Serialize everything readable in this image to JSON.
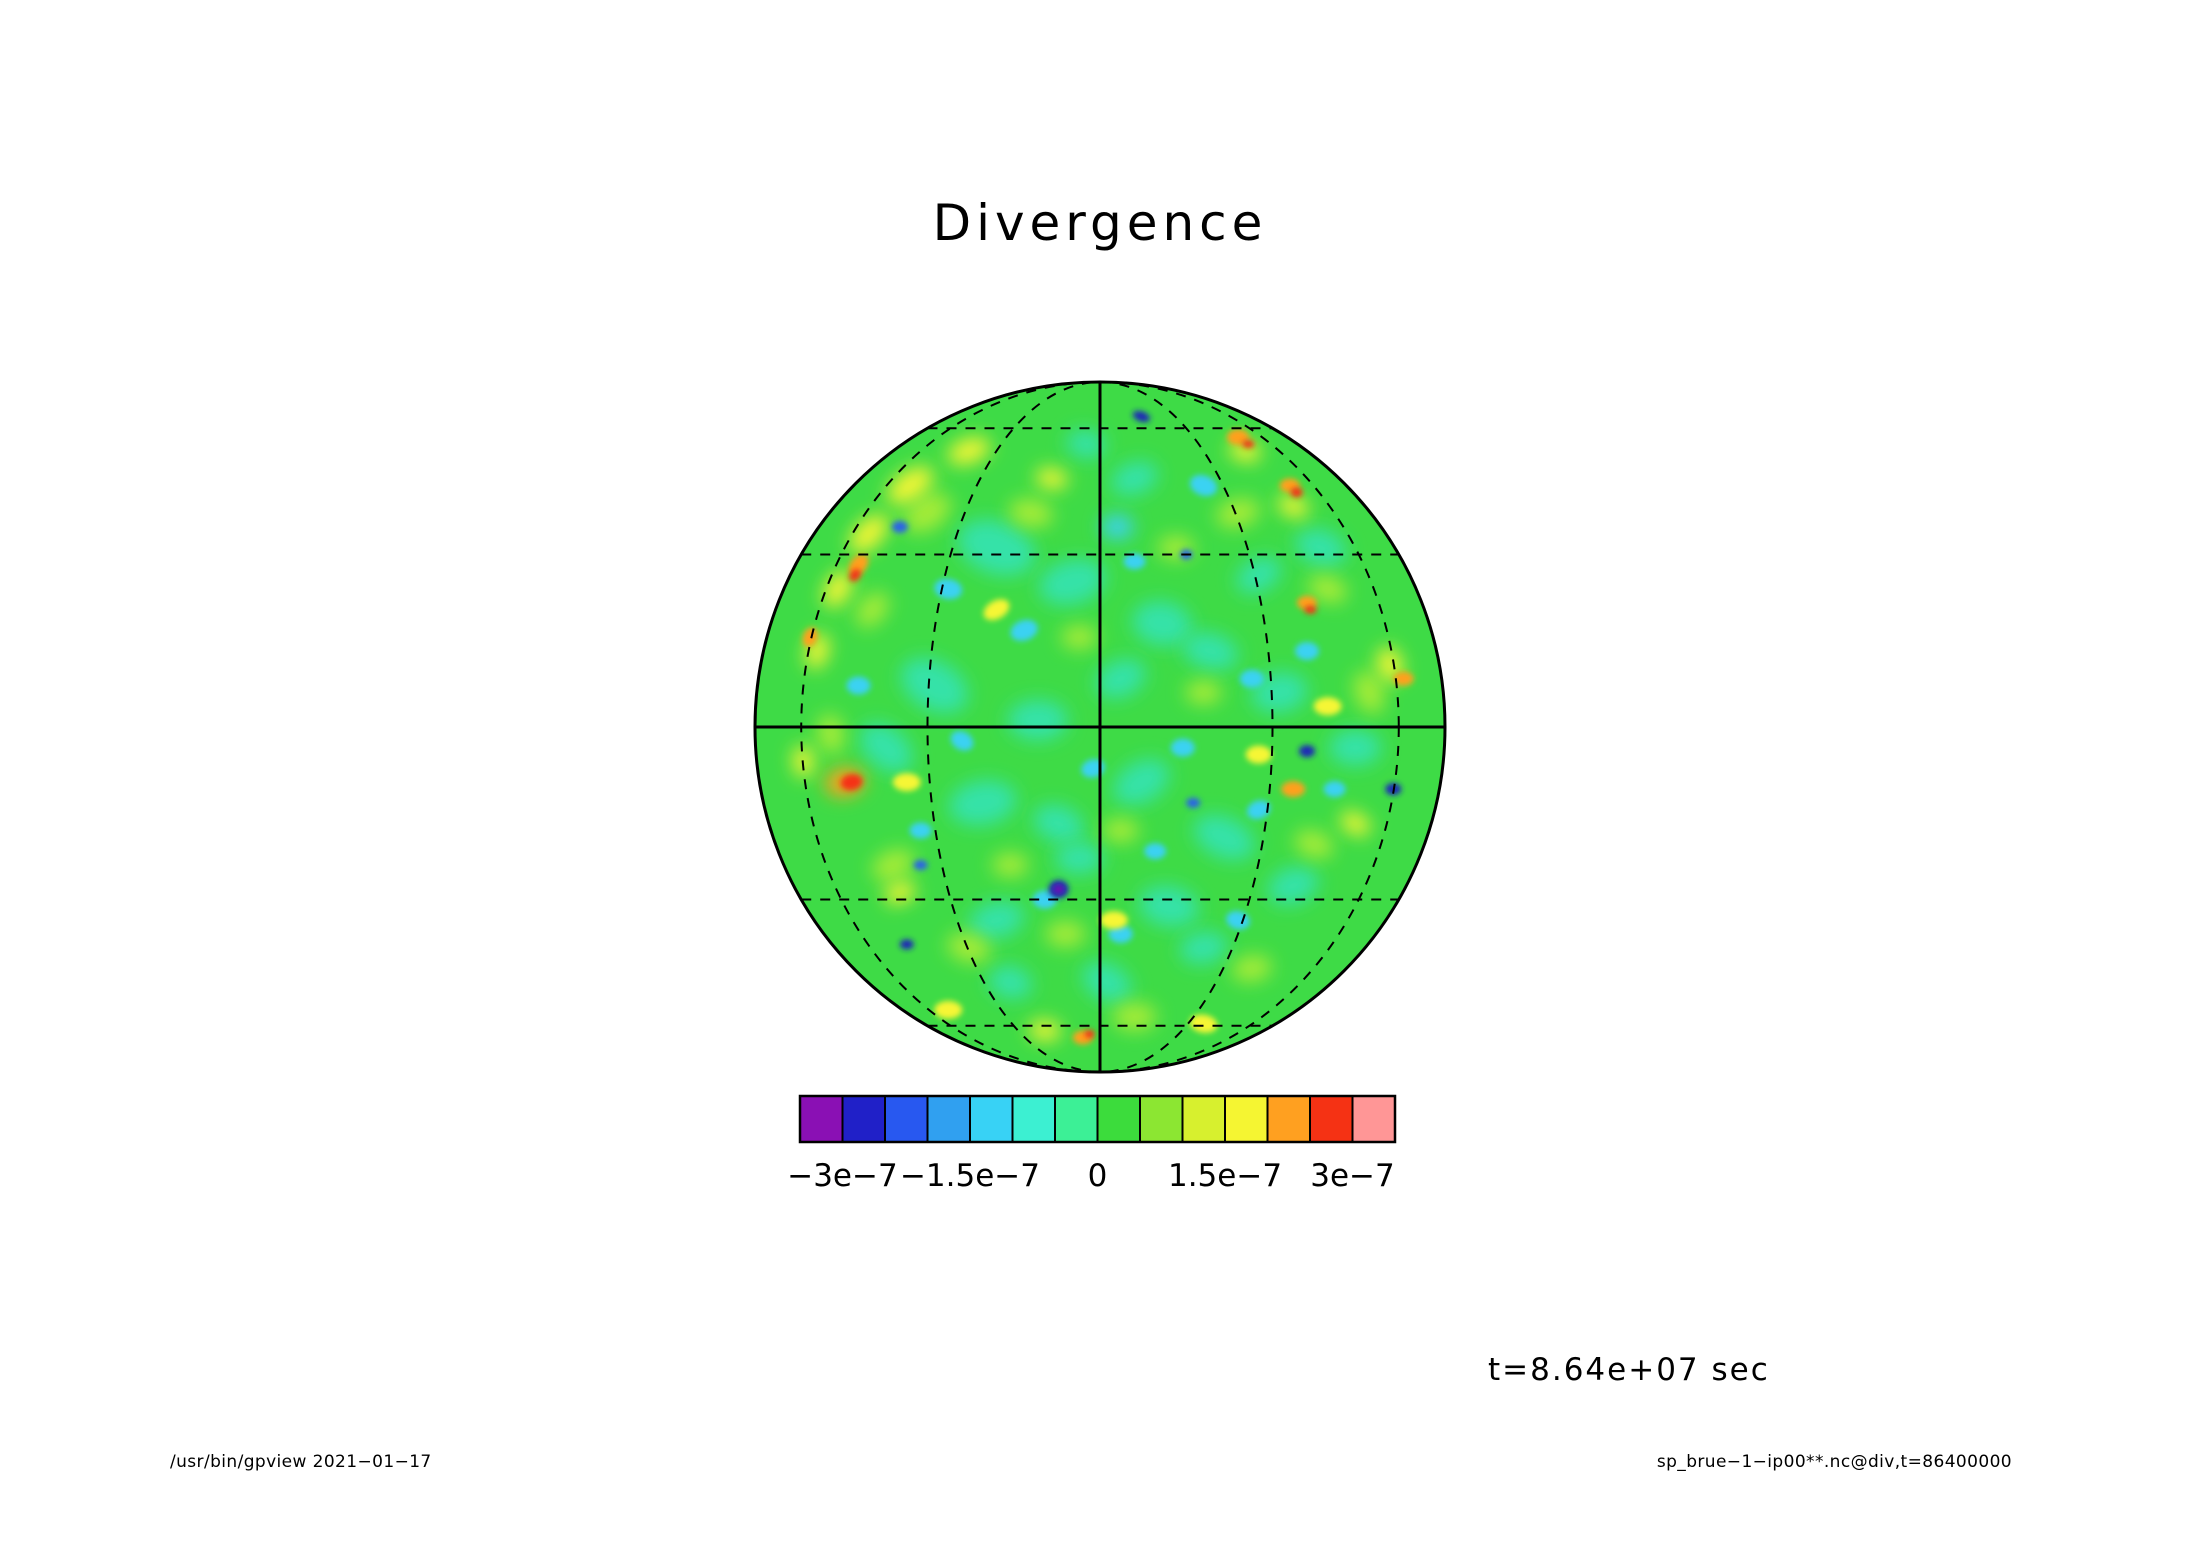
{
  "title": "Divergence",
  "time_annotation": "t=8.64e+07 sec",
  "footer": {
    "left": "/usr/bin/gpview  2021−01−17",
    "right": "sp_brue−1−ip00**.nc@div,t=86400000"
  },
  "chart_data": {
    "type": "heatmap",
    "projection": "orthographic globe (equatorial aspect)",
    "title": "Divergence",
    "time_label": "t=8.64e+07 sec",
    "colorbar": {
      "orientation": "horizontal",
      "value_min": -3.5e-07,
      "value_max": 3.5e-07,
      "cell_step": 5e-08,
      "cell_colors": [
        "#8a10b4",
        "#2020c8",
        "#2858f0",
        "#30a0f0",
        "#38d2f5",
        "#3cf0d2",
        "#3cf096",
        "#3cdc3c",
        "#8ce632",
        "#d7f02e",
        "#f5f532",
        "#ffa020",
        "#f53214",
        "#ff9696"
      ],
      "ticks": [
        {
          "label": "−3e−7",
          "value": -3e-07,
          "pct": 7.14
        },
        {
          "label": "−1.5e−7",
          "value": -1.5e-07,
          "pct": 28.57
        },
        {
          "label": "0",
          "value": 0,
          "pct": 50
        },
        {
          "label": "1.5e−7",
          "value": 1.5e-07,
          "pct": 71.43
        },
        {
          "label": "3e−7",
          "value": 3e-07,
          "pct": 92.86
        }
      ]
    },
    "graticule": {
      "equator": "solid",
      "central_meridian": "solid",
      "dashed_parallels_deg": [
        30,
        60
      ],
      "dashed_meridians_deg": [
        30,
        60
      ]
    },
    "field": {
      "description": "Turbulent divergence anomalies of order ±3e-7 on a mostly green near-zero background; warm yellow/orange/red maxima and cyan/teal/blue minima scattered over the sphere, with a yellow-orange arc on the upper-left limb, a strong red spot on the mid-left, and several deep-blue dots (strongest near bottom-center).",
      "base_color": "#3edb46",
      "palette": {
        "teal": "#35e2a8",
        "cyan": "#3ad2f2",
        "lgreen": "#a6ec38",
        "yellow": "#f6f636",
        "orange": "#ffa01e",
        "red": "#f53214",
        "blue": "#2a62e8",
        "navy": "#1c26b8",
        "purple": "#7a14b0"
      },
      "features": [
        [
          -0.3,
          -0.52,
          40,
          26,
          20,
          "teal"
        ],
        [
          -0.08,
          -0.42,
          34,
          22,
          -15,
          "teal"
        ],
        [
          0.18,
          -0.3,
          30,
          22,
          10,
          "teal"
        ],
        [
          -0.48,
          -0.12,
          36,
          24,
          30,
          "teal"
        ],
        [
          -0.18,
          -0.02,
          30,
          20,
          0,
          "teal"
        ],
        [
          0.06,
          -0.14,
          26,
          18,
          -25,
          "teal"
        ],
        [
          0.32,
          -0.22,
          28,
          18,
          15,
          "teal"
        ],
        [
          -0.62,
          0.06,
          30,
          20,
          40,
          "teal"
        ],
        [
          -0.34,
          0.22,
          34,
          22,
          -10,
          "teal"
        ],
        [
          -0.12,
          0.28,
          26,
          18,
          20,
          "teal"
        ],
        [
          0.12,
          0.16,
          30,
          20,
          -30,
          "teal"
        ],
        [
          0.36,
          0.32,
          32,
          20,
          25,
          "teal"
        ],
        [
          0.56,
          0.46,
          26,
          18,
          -20,
          "teal"
        ],
        [
          0.2,
          0.52,
          30,
          20,
          10,
          "teal"
        ],
        [
          -0.06,
          0.38,
          24,
          16,
          0,
          "teal"
        ],
        [
          -0.3,
          0.56,
          28,
          18,
          -15,
          "teal"
        ],
        [
          0.02,
          0.74,
          26,
          18,
          30,
          "teal"
        ],
        [
          0.3,
          0.64,
          24,
          16,
          -10,
          "teal"
        ],
        [
          0.64,
          -0.52,
          26,
          18,
          20,
          "teal"
        ],
        [
          0.46,
          -0.44,
          24,
          16,
          -30,
          "teal"
        ],
        [
          0.74,
          0.06,
          26,
          18,
          0,
          "teal"
        ],
        [
          -0.26,
          0.74,
          22,
          16,
          15,
          "teal"
        ],
        [
          0.1,
          -0.72,
          24,
          16,
          -20,
          "teal"
        ],
        [
          -0.04,
          -0.82,
          20,
          14,
          10,
          "teal"
        ],
        [
          0.52,
          -0.1,
          28,
          20,
          -10,
          "teal"
        ],
        [
          -0.5,
          -0.62,
          26,
          16,
          -35,
          "lgreen"
        ],
        [
          -0.2,
          -0.62,
          22,
          14,
          10,
          "lgreen"
        ],
        [
          0.4,
          -0.62,
          22,
          14,
          -15,
          "lgreen"
        ],
        [
          0.66,
          -0.4,
          20,
          13,
          20,
          "lgreen"
        ],
        [
          -0.66,
          -0.34,
          20,
          13,
          -50,
          "lgreen"
        ],
        [
          -0.78,
          0.02,
          20,
          13,
          80,
          "lgreen"
        ],
        [
          0.78,
          -0.1,
          22,
          14,
          70,
          "lgreen"
        ],
        [
          -0.6,
          0.4,
          22,
          14,
          -25,
          "lgreen"
        ],
        [
          0.62,
          0.34,
          20,
          13,
          20,
          "lgreen"
        ],
        [
          -0.38,
          0.64,
          22,
          14,
          15,
          "lgreen"
        ],
        [
          0.1,
          0.84,
          22,
          14,
          0,
          "lgreen"
        ],
        [
          0.44,
          0.7,
          20,
          13,
          -10,
          "lgreen"
        ],
        [
          -0.1,
          0.6,
          20,
          13,
          0,
          "lgreen"
        ],
        [
          0.06,
          0.3,
          18,
          12,
          0,
          "lgreen"
        ],
        [
          -0.26,
          0.4,
          18,
          12,
          0,
          "lgreen"
        ],
        [
          0.3,
          -0.1,
          18,
          12,
          0,
          "lgreen"
        ],
        [
          -0.06,
          -0.26,
          18,
          12,
          0,
          "lgreen"
        ],
        [
          0.22,
          -0.52,
          18,
          12,
          0,
          "lgreen"
        ],
        [
          0.05,
          -0.58,
          16,
          12,
          0,
          "cyan"
        ],
        [
          0.3,
          -0.7,
          14,
          10,
          20,
          "cyan"
        ],
        [
          -0.22,
          -0.28,
          14,
          10,
          -20,
          "cyan"
        ],
        [
          0.44,
          -0.14,
          12,
          9,
          0,
          "cyan"
        ],
        [
          -0.4,
          0.04,
          12,
          9,
          30,
          "cyan"
        ],
        [
          0.24,
          0.06,
          12,
          9,
          0,
          "cyan"
        ],
        [
          0.46,
          0.24,
          12,
          9,
          -20,
          "cyan"
        ],
        [
          -0.16,
          0.5,
          12,
          9,
          0,
          "cyan"
        ],
        [
          0.4,
          0.56,
          12,
          9,
          15,
          "cyan"
        ],
        [
          0.06,
          0.6,
          12,
          9,
          0,
          "cyan"
        ],
        [
          -0.44,
          -0.4,
          14,
          10,
          10,
          "cyan"
        ],
        [
          0.6,
          -0.22,
          12,
          9,
          0,
          "cyan"
        ],
        [
          -0.7,
          -0.12,
          12,
          9,
          0,
          "cyan"
        ],
        [
          0.16,
          0.36,
          11,
          8,
          0,
          "cyan"
        ],
        [
          -0.02,
          0.12,
          12,
          9,
          -15,
          "cyan"
        ],
        [
          0.68,
          0.18,
          11,
          8,
          0,
          "cyan"
        ],
        [
          -0.52,
          0.3,
          11,
          8,
          0,
          "cyan"
        ],
        [
          0.1,
          -0.48,
          11,
          8,
          0,
          "cyan"
        ],
        [
          -0.55,
          -0.7,
          26,
          14,
          -35,
          "yellow"
        ],
        [
          -0.67,
          -0.56,
          24,
          13,
          -45,
          "yellow"
        ],
        [
          -0.76,
          -0.4,
          20,
          12,
          -60,
          "yellow"
        ],
        [
          -0.82,
          -0.22,
          18,
          11,
          -75,
          "yellow"
        ],
        [
          -0.38,
          -0.8,
          22,
          12,
          -20,
          "yellow"
        ],
        [
          -0.14,
          -0.72,
          16,
          10,
          10,
          "yellow"
        ],
        [
          0.42,
          -0.8,
          16,
          10,
          15,
          "yellow"
        ],
        [
          0.56,
          -0.64,
          16,
          10,
          25,
          "yellow"
        ],
        [
          0.84,
          -0.18,
          18,
          12,
          75,
          "yellow"
        ],
        [
          0.74,
          0.28,
          16,
          10,
          30,
          "yellow"
        ],
        [
          -0.86,
          0.1,
          16,
          10,
          85,
          "yellow"
        ],
        [
          -0.56,
          0.16,
          14,
          9,
          0,
          "yellow"
        ],
        [
          -0.58,
          0.48,
          16,
          10,
          -20,
          "yellow"
        ],
        [
          -0.16,
          0.88,
          16,
          10,
          5,
          "yellow"
        ],
        [
          0.04,
          0.56,
          14,
          9,
          0,
          "yellow"
        ],
        [
          0.46,
          0.08,
          13,
          9,
          0,
          "yellow"
        ],
        [
          -0.3,
          -0.34,
          14,
          9,
          -30,
          "yellow"
        ],
        [
          0.3,
          0.86,
          14,
          9,
          10,
          "yellow"
        ],
        [
          -0.44,
          0.82,
          14,
          9,
          0,
          "yellow"
        ],
        [
          0.66,
          -0.06,
          14,
          9,
          0,
          "yellow"
        ],
        [
          -0.7,
          -0.47,
          12,
          8,
          -50,
          "orange"
        ],
        [
          0.4,
          -0.84,
          11,
          8,
          0,
          "orange"
        ],
        [
          0.55,
          -0.7,
          10,
          7,
          0,
          "orange"
        ],
        [
          -0.74,
          0.16,
          20,
          14,
          -10,
          "orange"
        ],
        [
          0.56,
          0.18,
          12,
          8,
          0,
          "orange"
        ],
        [
          -0.05,
          0.9,
          10,
          7,
          0,
          "orange"
        ],
        [
          0.88,
          -0.14,
          10,
          7,
          0,
          "orange"
        ],
        [
          -0.84,
          -0.26,
          10,
          7,
          -70,
          "orange"
        ],
        [
          0.6,
          -0.36,
          10,
          7,
          0,
          "orange"
        ],
        [
          -0.72,
          0.16,
          11,
          8,
          -10,
          "red"
        ],
        [
          -0.71,
          -0.44,
          7,
          5,
          -50,
          "red"
        ],
        [
          0.57,
          -0.68,
          6,
          5,
          0,
          "red"
        ],
        [
          0.43,
          -0.82,
          6,
          4,
          0,
          "red"
        ],
        [
          0.61,
          -0.34,
          6,
          4,
          0,
          "red"
        ],
        [
          -0.03,
          0.89,
          5,
          4,
          0,
          "red"
        ],
        [
          -0.58,
          -0.58,
          8,
          6,
          0,
          "blue"
        ],
        [
          -0.52,
          0.4,
          7,
          5,
          0,
          "blue"
        ],
        [
          0.27,
          0.22,
          7,
          5,
          0,
          "blue"
        ],
        [
          0.25,
          -0.5,
          6,
          5,
          0,
          "blue"
        ],
        [
          0.12,
          -0.9,
          9,
          5,
          20,
          "navy"
        ],
        [
          -0.12,
          0.47,
          10,
          9,
          0,
          "navy"
        ],
        [
          0.6,
          0.07,
          8,
          6,
          0,
          "navy"
        ],
        [
          -0.56,
          0.63,
          7,
          5,
          0,
          "navy"
        ],
        [
          0.85,
          0.18,
          8,
          6,
          0,
          "navy"
        ],
        [
          -0.12,
          0.47,
          5,
          4,
          0,
          "purple"
        ]
      ]
    }
  }
}
